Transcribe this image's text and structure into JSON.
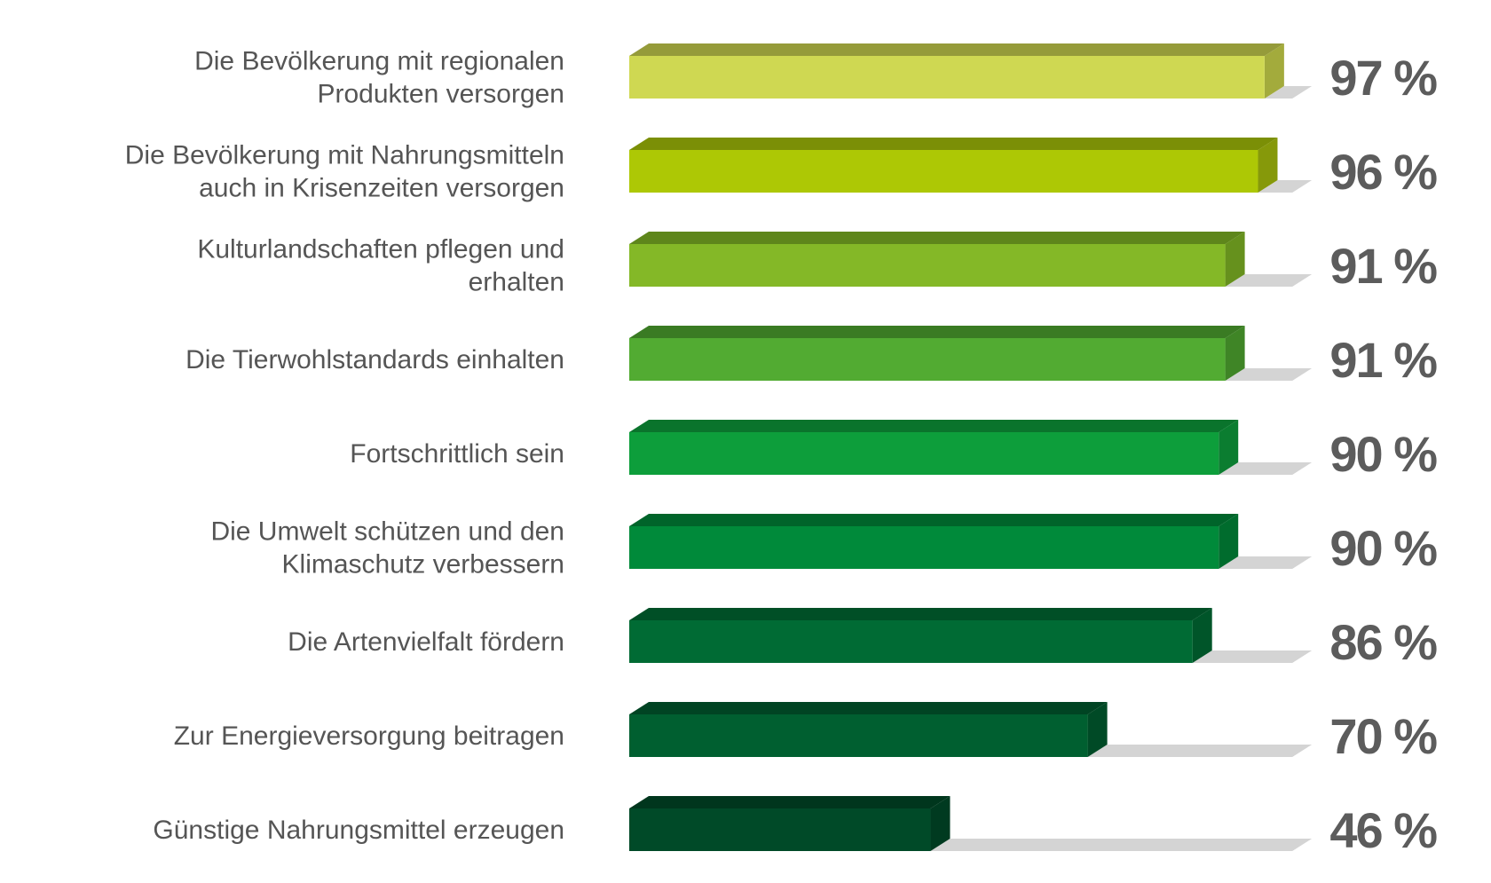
{
  "chart_data": {
    "type": "bar",
    "orientation": "horizontal",
    "style": "3d",
    "categories": [
      [
        "Die Bevölkerung mit regionalen",
        "Produkten versorgen"
      ],
      [
        "Die Bevölkerung mit Nahrungsmitteln",
        "auch in Krisenzeiten versorgen"
      ],
      [
        "Kulturlandschaften pflegen und",
        "erhalten"
      ],
      [
        "Die Tierwohlstandards einhalten"
      ],
      [
        "Fortschrittlich sein"
      ],
      [
        "Die Umwelt schützen und den",
        "Klimaschutz verbessern"
      ],
      [
        "Die Artenvielfalt fördern"
      ],
      [
        "Zur Energieversorgung beitragen"
      ],
      [
        "Günstige Nahrungsmittel erzeugen"
      ]
    ],
    "values": [
      97,
      96,
      91,
      91,
      90,
      90,
      86,
      70,
      46
    ],
    "value_labels": [
      "97 %",
      "96 %",
      "91 %",
      "91 %",
      "90 %",
      "90 %",
      "86 %",
      "70 %",
      "46 %"
    ],
    "xlim": [
      0,
      100
    ],
    "grid": false,
    "legend": "none",
    "colors": [
      {
        "front": "#cfd852",
        "top": "#959b3a",
        "side": "#a3ab3c"
      },
      {
        "front": "#adc805",
        "top": "#7b8f06",
        "side": "#86990a"
      },
      {
        "front": "#84b827",
        "top": "#5e861b",
        "side": "#66911d"
      },
      {
        "front": "#52ab32",
        "top": "#3a7b23",
        "side": "#3f8526"
      },
      {
        "front": "#0d9e3b",
        "top": "#0a742c",
        "side": "#0b7d30"
      },
      {
        "front": "#008a3a",
        "top": "#00642a",
        "side": "#006c2d"
      },
      {
        "front": "#006b34",
        "top": "#004f26",
        "side": "#005529"
      },
      {
        "front": "#005f30",
        "top": "#004423",
        "side": "#004a26"
      },
      {
        "front": "#004a28",
        "top": "#00361d",
        "side": "#003a20"
      }
    ],
    "shadow_color": "#d4d4d4",
    "label_color": "#555555",
    "value_color": "#5c5c5c"
  }
}
